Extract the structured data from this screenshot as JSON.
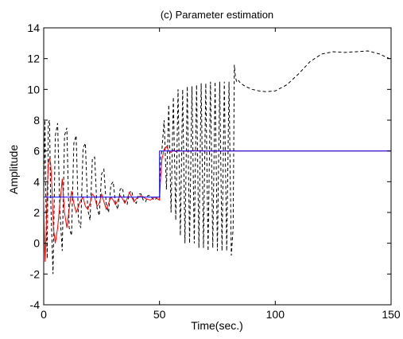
{
  "chart_data": {
    "type": "line",
    "title": "(c) Parameter estimation",
    "xlabel": "Time(sec.)",
    "ylabel": "Amplitude",
    "xlim": [
      0,
      150
    ],
    "ylim": [
      -4,
      14
    ],
    "xticks": [
      0,
      50,
      100,
      150
    ],
    "yticks": [
      -4,
      -2,
      0,
      2,
      4,
      6,
      8,
      10,
      12,
      14
    ],
    "grid": false,
    "series": [
      {
        "color": "#0000ff",
        "style": "solid",
        "x": [
          0,
          50,
          50,
          150
        ],
        "y": [
          3,
          3,
          6,
          6
        ]
      },
      {
        "color": "#ff0000",
        "style": "solid",
        "x": [
          0,
          0.3,
          0.6,
          1,
          1.5,
          2,
          2.5,
          3,
          3.6,
          4.2,
          5,
          6,
          7,
          8,
          9,
          10,
          11,
          12,
          13,
          14,
          15,
          16,
          17,
          18,
          19,
          20,
          21,
          22,
          23,
          24,
          25,
          26,
          27,
          28,
          29,
          30,
          31,
          32,
          33,
          34,
          35,
          36,
          37,
          38,
          39,
          40,
          42,
          44,
          46,
          48,
          49.5,
          50,
          50.5,
          51,
          52,
          53,
          54,
          55,
          56,
          57,
          58,
          59,
          60,
          62,
          65,
          70,
          75,
          80,
          85,
          90,
          100,
          110,
          120,
          130,
          140,
          150
        ],
        "y": [
          3,
          0.5,
          -1.2,
          0.5,
          3.5,
          5.2,
          5.5,
          5.2,
          3.5,
          1.0,
          0.0,
          1.0,
          2.6,
          4.2,
          2.0,
          1.0,
          2.2,
          3.4,
          2.6,
          2.0,
          2.4,
          2.8,
          3.0,
          2.4,
          2.2,
          2.6,
          3.2,
          3.0,
          2.4,
          2.6,
          3.2,
          2.7,
          2.2,
          2.6,
          3.0,
          2.8,
          2.5,
          2.8,
          3.1,
          2.9,
          2.6,
          2.9,
          3.3,
          3.0,
          2.7,
          2.9,
          3.1,
          2.9,
          2.8,
          3.0,
          2.85,
          2.8,
          4.3,
          5.4,
          6.1,
          6.3,
          6.0,
          5.9,
          6.05,
          5.95,
          6.05,
          6.0,
          6.0,
          5.98,
          6.02,
          6.0,
          5.99,
          6.0,
          6.0,
          6.0,
          6.0,
          6.0,
          6.0,
          6.0,
          6.0,
          6.0
        ]
      },
      {
        "color": "#000000",
        "style": "dashed",
        "x": [
          0,
          0.5,
          1,
          1.5,
          2,
          2.5,
          3,
          4,
          5,
          6,
          7,
          8,
          9,
          10,
          11,
          12,
          13,
          14,
          15,
          16,
          17,
          18,
          19,
          20,
          21,
          22,
          23,
          24,
          25,
          26,
          27,
          28,
          29,
          30,
          31,
          32,
          33,
          34,
          35,
          36,
          37,
          38,
          39,
          40,
          41,
          42,
          43,
          44,
          45,
          46,
          47,
          48,
          49,
          50,
          50.5,
          51,
          52,
          53,
          54,
          55,
          56,
          57,
          58,
          59,
          60,
          61,
          62,
          63,
          64,
          65,
          66,
          67,
          68,
          69,
          70,
          71,
          72,
          73,
          74,
          75,
          76,
          77,
          78,
          79,
          80,
          81,
          81.8,
          82.3,
          82.8,
          83.3,
          84,
          85,
          87,
          90,
          93,
          96,
          100,
          105,
          110,
          115,
          120,
          125,
          130,
          135,
          140,
          145,
          150
        ],
        "y": [
          3,
          8.0,
          2.0,
          -1.0,
          7.8,
          8.0,
          3.0,
          -2.0,
          7.0,
          7.8,
          2.0,
          -0.5,
          7.0,
          7.5,
          1.0,
          0.5,
          6.5,
          7.0,
          1.5,
          1.0,
          6.2,
          6.5,
          2.2,
          1.5,
          5.5,
          5.6,
          2.3,
          1.8,
          4.5,
          4.8,
          2.5,
          2.0,
          3.8,
          4.0,
          2.6,
          2.2,
          3.5,
          3.6,
          2.7,
          2.5,
          3.3,
          3.4,
          2.7,
          2.6,
          3.2,
          3.2,
          2.8,
          2.7,
          3.1,
          3.1,
          2.9,
          2.8,
          3.0,
          2.9,
          5.5,
          6.0,
          8.0,
          3.5,
          9.0,
          2.0,
          9.5,
          1.5,
          10.0,
          0.5,
          10.0,
          0.0,
          10.2,
          0.0,
          10.2,
          0.0,
          10.3,
          -0.3,
          10.4,
          -0.3,
          10.4,
          -0.5,
          10.5,
          -0.3,
          10.5,
          -0.5,
          10.5,
          -0.5,
          10.5,
          -0.5,
          10.5,
          -0.8,
          1.0,
          11.6,
          10.8,
          10.5,
          10.6,
          10.4,
          10.2,
          10.0,
          9.9,
          9.85,
          9.9,
          10.3,
          11.0,
          11.8,
          12.3,
          12.45,
          12.4,
          12.45,
          12.5,
          12.3,
          11.95
        ]
      }
    ]
  }
}
